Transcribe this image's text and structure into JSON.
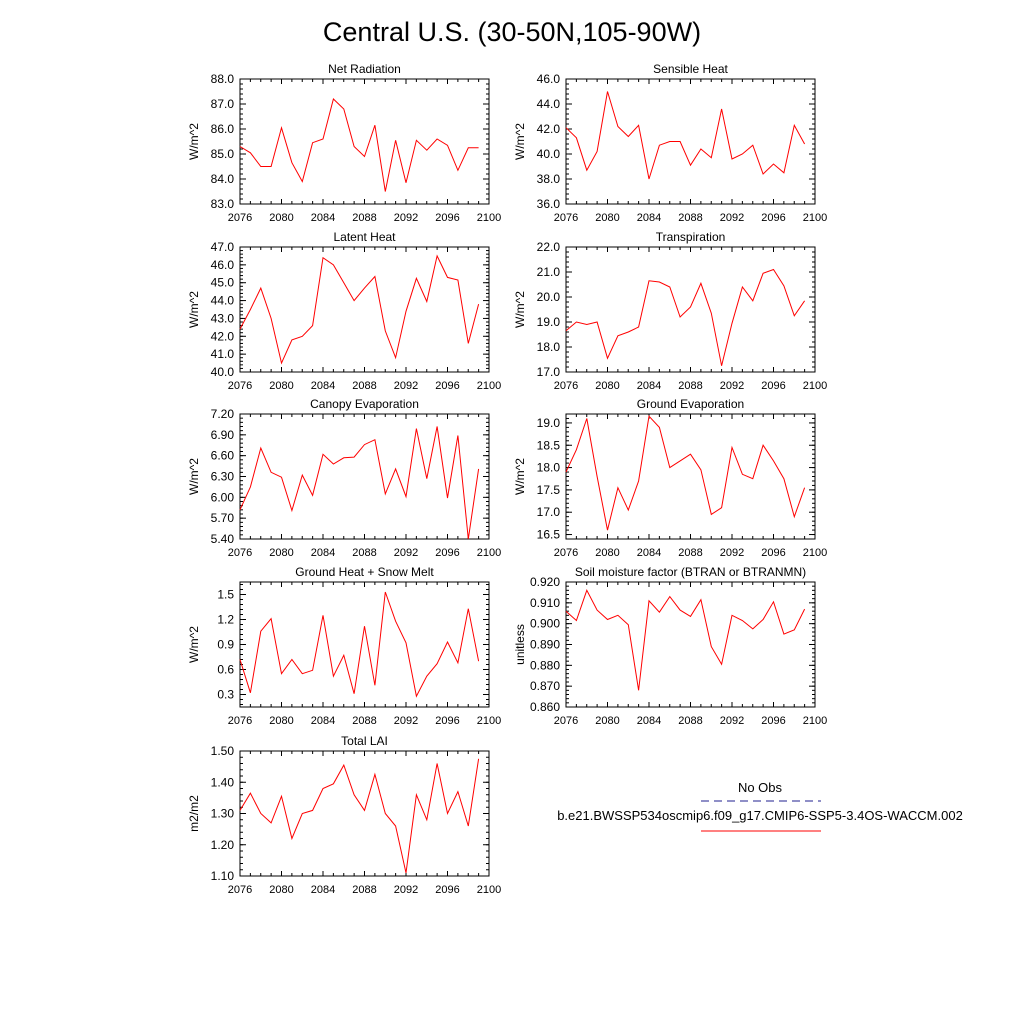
{
  "title": "Central U.S. (30-50N,105-90W)",
  "colors": {
    "series": "#ff0000",
    "obs": "#1f1f8f",
    "axis": "#000000"
  },
  "legend": {
    "obs_label": "No Obs",
    "model_label": "b.e21.BWSSP534oscmip6.f09_g17.CMIP6-SSP5-3.4OS-WACCM.002"
  },
  "chart_data": [
    {
      "type": "line",
      "title": "Net Radiation",
      "ylabel": "W/m^2",
      "ylim": [
        83,
        88
      ],
      "yticks": [
        "83.0",
        "84.0",
        "85.0",
        "86.0",
        "87.0",
        "88.0"
      ],
      "xlim": [
        2076,
        2100
      ],
      "xticks": [
        "2076",
        "2080",
        "2084",
        "2088",
        "2092",
        "2096",
        "2100"
      ],
      "x": [
        2076,
        2077,
        2078,
        2079,
        2080,
        2081,
        2082,
        2083,
        2084,
        2085,
        2086,
        2087,
        2088,
        2089,
        2090,
        2091,
        2092,
        2093,
        2094,
        2095,
        2096,
        2097,
        2098,
        2099
      ],
      "y": [
        85.3,
        85.05,
        84.5,
        84.5,
        86.05,
        84.65,
        83.9,
        85.45,
        85.6,
        87.2,
        86.8,
        85.3,
        84.9,
        86.15,
        83.5,
        85.55,
        83.85,
        85.55,
        85.15,
        85.6,
        85.35,
        84.35,
        85.25,
        85.25
      ]
    },
    {
      "type": "line",
      "title": "Sensible Heat",
      "ylabel": "W/m^2",
      "ylim": [
        36,
        46
      ],
      "yticks": [
        "36.0",
        "38.0",
        "40.0",
        "42.0",
        "44.0",
        "46.0"
      ],
      "xlim": [
        2076,
        2100
      ],
      "xticks": [
        "2076",
        "2080",
        "2084",
        "2088",
        "2092",
        "2096",
        "2100"
      ],
      "x": [
        2076,
        2077,
        2078,
        2079,
        2080,
        2081,
        2082,
        2083,
        2084,
        2085,
        2086,
        2087,
        2088,
        2089,
        2090,
        2091,
        2092,
        2093,
        2094,
        2095,
        2096,
        2097,
        2098,
        2099
      ],
      "y": [
        42.1,
        41.3,
        38.7,
        40.2,
        45.0,
        42.2,
        41.4,
        42.3,
        38.0,
        40.7,
        41.0,
        41.0,
        39.1,
        40.4,
        39.7,
        43.6,
        39.6,
        40.0,
        40.7,
        38.4,
        39.2,
        38.5,
        42.3,
        40.8
      ]
    },
    {
      "type": "line",
      "title": "Latent Heat",
      "ylabel": "W/m^2",
      "ylim": [
        40,
        47
      ],
      "yticks": [
        "40.0",
        "41.0",
        "42.0",
        "43.0",
        "44.0",
        "45.0",
        "46.0",
        "47.0"
      ],
      "xlim": [
        2076,
        2100
      ],
      "xticks": [
        "2076",
        "2080",
        "2084",
        "2088",
        "2092",
        "2096",
        "2100"
      ],
      "x": [
        2076,
        2077,
        2078,
        2079,
        2080,
        2081,
        2082,
        2083,
        2084,
        2085,
        2086,
        2087,
        2088,
        2089,
        2090,
        2091,
        2092,
        2093,
        2094,
        2095,
        2096,
        2097,
        2098,
        2099
      ],
      "y": [
        42.4,
        43.5,
        44.7,
        43.0,
        40.5,
        41.8,
        42.0,
        42.6,
        46.4,
        46.0,
        45.0,
        44.0,
        44.7,
        45.35,
        42.3,
        40.8,
        43.4,
        45.25,
        43.95,
        46.5,
        45.3,
        45.15,
        41.6,
        43.8
      ]
    },
    {
      "type": "line",
      "title": "Transpiration",
      "ylabel": "W/m^2",
      "ylim": [
        17,
        22
      ],
      "yticks": [
        "17.0",
        "18.0",
        "19.0",
        "20.0",
        "21.0",
        "22.0"
      ],
      "xlim": [
        2076,
        2100
      ],
      "xticks": [
        "2076",
        "2080",
        "2084",
        "2088",
        "2092",
        "2096",
        "2100"
      ],
      "x": [
        2076,
        2077,
        2078,
        2079,
        2080,
        2081,
        2082,
        2083,
        2084,
        2085,
        2086,
        2087,
        2088,
        2089,
        2090,
        2091,
        2092,
        2093,
        2094,
        2095,
        2096,
        2097,
        2098,
        2099
      ],
      "y": [
        18.65,
        19.0,
        18.9,
        19.0,
        17.55,
        18.45,
        18.6,
        18.8,
        20.65,
        20.6,
        20.4,
        19.2,
        19.6,
        20.55,
        19.35,
        17.25,
        18.95,
        20.4,
        19.85,
        20.95,
        21.1,
        20.45,
        19.25,
        19.85
      ]
    },
    {
      "type": "line",
      "title": "Canopy Evaporation",
      "ylabel": "W/m^2",
      "ylim": [
        5.4,
        7.2
      ],
      "yticks": [
        "5.40",
        "5.70",
        "6.00",
        "6.30",
        "6.60",
        "6.90",
        "7.20"
      ],
      "xlim": [
        2076,
        2100
      ],
      "xticks": [
        "2076",
        "2080",
        "2084",
        "2088",
        "2092",
        "2096",
        "2100"
      ],
      "x": [
        2076,
        2077,
        2078,
        2079,
        2080,
        2081,
        2082,
        2083,
        2084,
        2085,
        2086,
        2087,
        2088,
        2089,
        2090,
        2091,
        2092,
        2093,
        2094,
        2095,
        2096,
        2097,
        2098,
        2099
      ],
      "y": [
        5.82,
        6.15,
        6.71,
        6.36,
        6.29,
        5.81,
        6.32,
        6.03,
        6.62,
        6.48,
        6.57,
        6.58,
        6.76,
        6.83,
        6.05,
        6.41,
        6.01,
        6.99,
        6.27,
        7.02,
        5.99,
        6.89,
        5.4,
        6.41
      ]
    },
    {
      "type": "line",
      "title": "Ground Evaporation",
      "ylabel": "W/m^2",
      "ylim": [
        16.4,
        19.2
      ],
      "yticks": [
        "16.5",
        "17.0",
        "17.5",
        "18.0",
        "18.5",
        "19.0"
      ],
      "xlim": [
        2076,
        2100
      ],
      "xticks": [
        "2076",
        "2080",
        "2084",
        "2088",
        "2092",
        "2096",
        "2100"
      ],
      "x": [
        2076,
        2077,
        2078,
        2079,
        2080,
        2081,
        2082,
        2083,
        2084,
        2085,
        2086,
        2087,
        2088,
        2089,
        2090,
        2091,
        2092,
        2093,
        2094,
        2095,
        2096,
        2097,
        2098,
        2099
      ],
      "y": [
        17.9,
        18.4,
        19.1,
        17.8,
        16.6,
        17.55,
        17.05,
        17.7,
        19.15,
        18.9,
        18.0,
        18.15,
        18.3,
        17.95,
        16.95,
        17.1,
        18.45,
        17.85,
        17.75,
        18.5,
        18.15,
        17.75,
        16.9,
        17.55
      ]
    },
    {
      "type": "line",
      "title": "Ground Heat + Snow Melt",
      "ylabel": "W/m^2",
      "ylim": [
        0.15,
        1.65
      ],
      "yticks": [
        "0.3",
        "0.6",
        "0.9",
        "1.2",
        "1.5"
      ],
      "xlim": [
        2076,
        2100
      ],
      "xticks": [
        "2076",
        "2080",
        "2084",
        "2088",
        "2092",
        "2096",
        "2100"
      ],
      "x": [
        2076,
        2077,
        2078,
        2079,
        2080,
        2081,
        2082,
        2083,
        2084,
        2085,
        2086,
        2087,
        2088,
        2089,
        2090,
        2091,
        2092,
        2093,
        2094,
        2095,
        2096,
        2097,
        2098,
        2099
      ],
      "y": [
        0.72,
        0.32,
        1.06,
        1.21,
        0.55,
        0.72,
        0.55,
        0.59,
        1.25,
        0.52,
        0.77,
        0.31,
        1.12,
        0.41,
        1.53,
        1.18,
        0.92,
        0.28,
        0.52,
        0.67,
        0.93,
        0.68,
        1.33,
        0.7
      ]
    },
    {
      "type": "line",
      "title": "Soil moisture factor (BTRAN or BTRANMN)",
      "ylabel": "unitless",
      "ylim": [
        0.86,
        0.92
      ],
      "yticks": [
        "0.860",
        "0.870",
        "0.880",
        "0.890",
        "0.900",
        "0.910",
        "0.920"
      ],
      "xlim": [
        2076,
        2100
      ],
      "xticks": [
        "2076",
        "2080",
        "2084",
        "2088",
        "2092",
        "2096",
        "2100"
      ],
      "x": [
        2076,
        2077,
        2078,
        2079,
        2080,
        2081,
        2082,
        2083,
        2084,
        2085,
        2086,
        2087,
        2088,
        2089,
        2090,
        2091,
        2092,
        2093,
        2094,
        2095,
        2096,
        2097,
        2098,
        2099
      ],
      "y": [
        0.906,
        0.9015,
        0.916,
        0.9065,
        0.902,
        0.904,
        0.8995,
        0.868,
        0.911,
        0.9055,
        0.913,
        0.9065,
        0.9035,
        0.9115,
        0.889,
        0.8805,
        0.904,
        0.9015,
        0.8975,
        0.902,
        0.9105,
        0.895,
        0.897,
        0.907
      ]
    },
    {
      "type": "line",
      "title": "Total LAI",
      "ylabel": "m2/m2",
      "ylim": [
        1.1,
        1.5
      ],
      "yticks": [
        "1.10",
        "1.20",
        "1.30",
        "1.40",
        "1.50"
      ],
      "xlim": [
        2076,
        2100
      ],
      "xticks": [
        "2076",
        "2080",
        "2084",
        "2088",
        "2092",
        "2096",
        "2100"
      ],
      "x": [
        2076,
        2077,
        2078,
        2079,
        2080,
        2081,
        2082,
        2083,
        2084,
        2085,
        2086,
        2087,
        2088,
        2089,
        2090,
        2091,
        2092,
        2093,
        2094,
        2095,
        2096,
        2097,
        2098,
        2099
      ],
      "y": [
        1.31,
        1.365,
        1.3,
        1.27,
        1.355,
        1.22,
        1.3,
        1.31,
        1.38,
        1.395,
        1.455,
        1.36,
        1.31,
        1.425,
        1.3,
        1.26,
        1.11,
        1.36,
        1.28,
        1.46,
        1.3,
        1.37,
        1.26,
        1.475
      ]
    }
  ]
}
